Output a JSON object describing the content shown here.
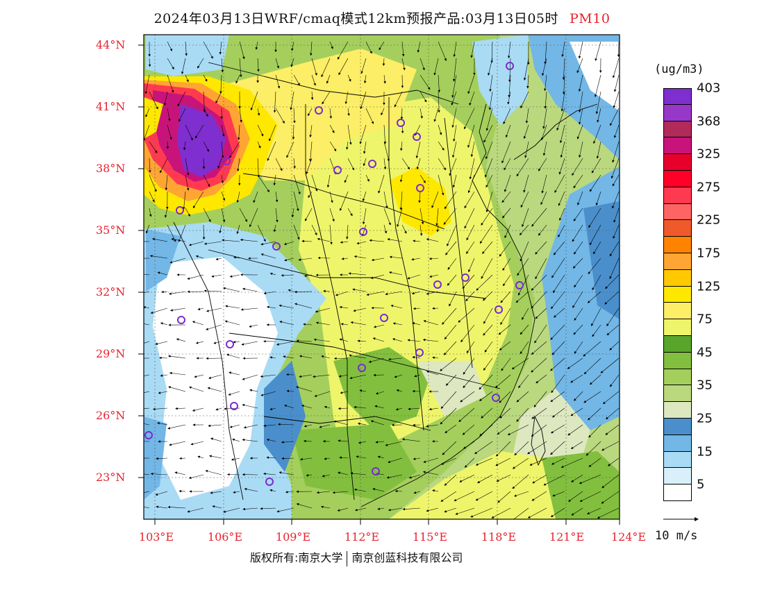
{
  "title": {
    "main": "2024年03月13日WRF/cmaq模式12km预报产品:03月13日05时",
    "pollutant": "PM10"
  },
  "map": {
    "lat_labels": [
      "44°N",
      "41°N",
      "38°N",
      "35°N",
      "32°N",
      "29°N",
      "26°N",
      "23°N"
    ],
    "lon_labels": [
      "103°E",
      "106°E",
      "109°E",
      "112°E",
      "115°E",
      "118°E",
      "121°E",
      "124°E"
    ]
  },
  "legend": {
    "unit": "(ug/m3)",
    "colors": [
      "#ffffff",
      "#d9f0fb",
      "#a9dbf5",
      "#72b7e6",
      "#4a8fcb",
      "#dde8c0",
      "#bad87e",
      "#a4cf5c",
      "#82bf3e",
      "#59a52c",
      "#eef56a",
      "#fcee66",
      "#ffe800",
      "#ffc800",
      "#ffa533",
      "#ff8300",
      "#f05a2a",
      "#ff6464",
      "#ff3a50",
      "#ff0028",
      "#e8002c",
      "#c8147a",
      "#b02a5a",
      "#9838c8",
      "#7f2ecf"
    ],
    "labels": [
      "5",
      "15",
      "25",
      "35",
      "45",
      "75",
      "125",
      "175",
      "225",
      "275",
      "325",
      "368",
      "403"
    ]
  },
  "wind_scale": {
    "label": "10 m/s"
  },
  "copyright": {
    "left": "版权所有:南京大学",
    "right": "南京创蓝科技有限公司"
  },
  "colors": {
    "label_red": "#e8222e",
    "station_purple": "#7a2ad0"
  }
}
